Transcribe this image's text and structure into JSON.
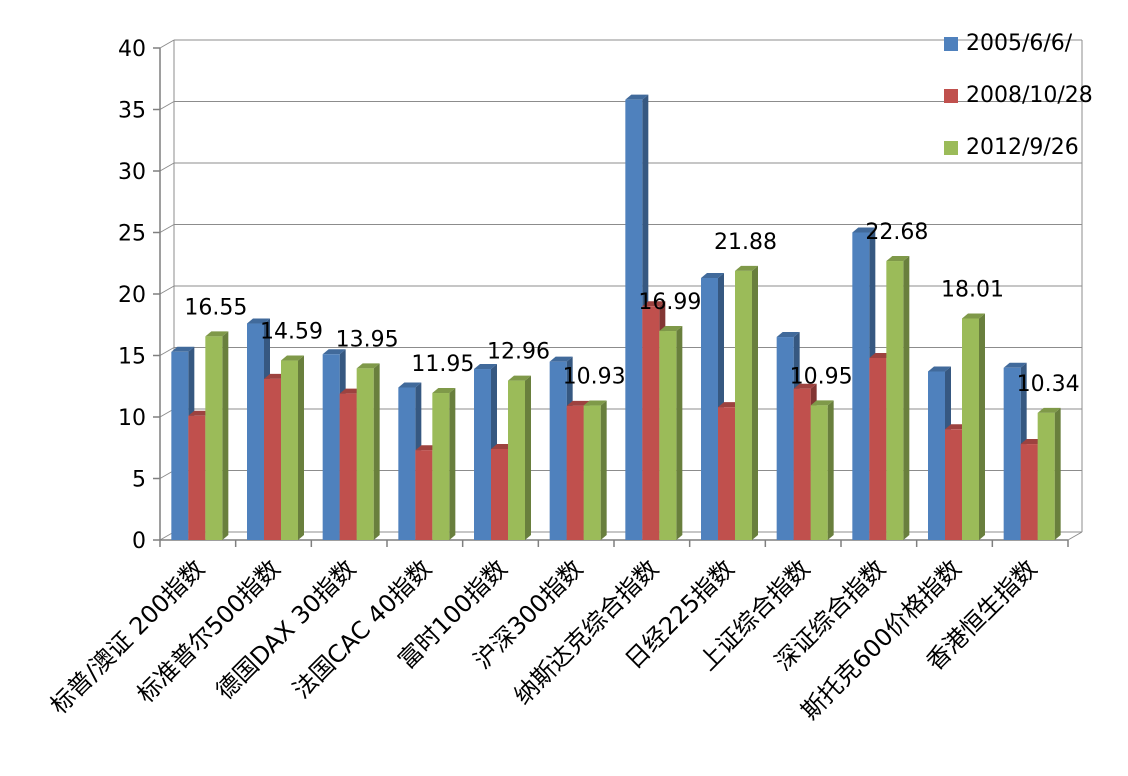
{
  "chart_data": {
    "type": "bar",
    "title": "",
    "xlabel": "",
    "ylabel": "",
    "ylim": [
      0,
      40
    ],
    "yticks": [
      0,
      5,
      10,
      15,
      20,
      25,
      30,
      35,
      40
    ],
    "grid": true,
    "legend_position": "top-right",
    "categories": [
      "标普/澳证 200指数",
      "标准普尔500指数",
      "德国DAX 30指数",
      "法国CAC 40指数",
      "富时100指数",
      "沪深300指数",
      "纳斯达克综合指数",
      "日经225指数",
      "上证综合指数",
      "深证综合指数",
      "斯托克600价格指数",
      "香港恒生指数"
    ],
    "series": [
      {
        "name": "2005/6/6/",
        "color": "#4F81BD",
        "values": [
          15.3,
          17.6,
          15.1,
          12.4,
          13.9,
          14.5,
          35.8,
          21.3,
          16.5,
          25.0,
          13.7,
          14.0
        ]
      },
      {
        "name": "2008/10/28",
        "color": "#C0504D",
        "values": [
          10.1,
          13.1,
          11.9,
          7.3,
          7.4,
          10.9,
          19.0,
          10.8,
          12.3,
          14.8,
          9.0,
          7.8
        ]
      },
      {
        "name": "2012/9/26",
        "color": "#9BBB59",
        "values": [
          16.55,
          14.59,
          13.95,
          11.95,
          12.96,
          10.93,
          16.99,
          21.88,
          10.95,
          22.68,
          18.01,
          10.34
        ]
      }
    ],
    "data_labels": [
      "16.55",
      "14.59",
      "13.95",
      "11.95",
      "12.96",
      "10.93",
      "16.99",
      "21.88",
      "10.95",
      "22.68",
      "18.01",
      "10.34"
    ]
  }
}
